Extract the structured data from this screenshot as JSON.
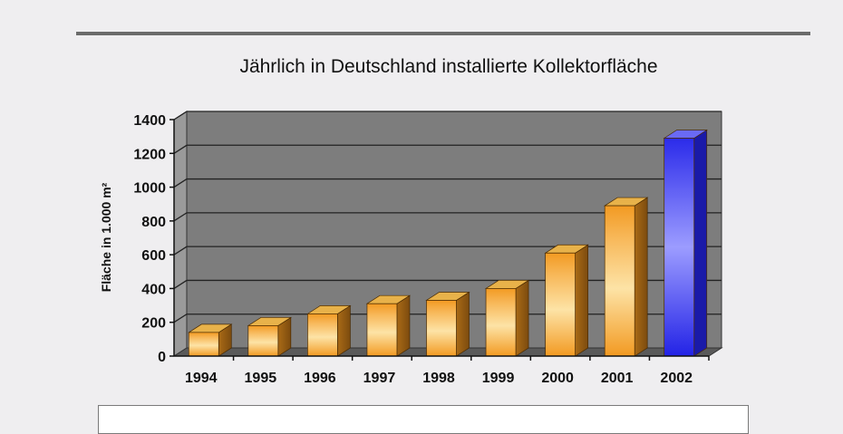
{
  "chart_data": {
    "type": "bar",
    "title": "Jährlich in Deutschland installierte Kollektorfläche",
    "ylabel": "Fläche in 1.000 m²",
    "xlabel": "",
    "ylim": [
      0,
      1400
    ],
    "yticks": [
      0,
      200,
      400,
      600,
      800,
      1000,
      1200,
      1400
    ],
    "grid": true,
    "categories": [
      "1994",
      "1995",
      "1996",
      "1997",
      "1998",
      "1999",
      "2000",
      "2001",
      "2002"
    ],
    "values": [
      140,
      180,
      250,
      310,
      330,
      400,
      610,
      890,
      1290
    ],
    "colors": {
      "bar_main": "#f3a230",
      "bar_light": "#fde2a0",
      "bar_highlight": "#2a2aea",
      "plot_wall": "#7d7d7d",
      "plot_floor": "#5a5a5a"
    }
  }
}
